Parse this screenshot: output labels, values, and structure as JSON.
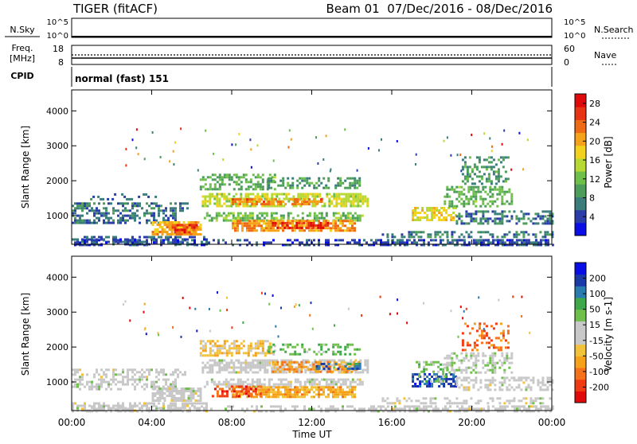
{
  "header": {
    "title": "TIGER (fitACF)",
    "beam_info": "Beam 01  07/Dec/2016 - 08/Dec/2016"
  },
  "status_panels": {
    "nsky": {
      "label": "N.Sky",
      "ticks": [
        "10^5",
        "10^0"
      ]
    },
    "nsearch": {
      "label": "N.Search",
      "ticks": [
        "10^5",
        "10^0"
      ]
    },
    "freq": {
      "label_line1": "Freq.",
      "label_line2": "[MHz]",
      "ticks": [
        "18",
        "8"
      ]
    },
    "nave": {
      "label": "Nave",
      "ticks": [
        "60",
        "0"
      ]
    },
    "cpid": {
      "label": "CPID",
      "text": "normal (fast) 151"
    }
  },
  "chart_data": [
    {
      "type": "heatmap",
      "name": "power",
      "ylabel": "Slant Range [km]",
      "yticks": [
        "4000",
        "3000",
        "2000",
        "1000"
      ],
      "ytick_values": [
        4000,
        3000,
        2000,
        1000
      ],
      "ylim": [
        180,
        4600
      ],
      "xlim_hours": [
        0,
        24
      ],
      "colorbar": {
        "label": "Power [dB]",
        "ticks": [
          "28",
          "24",
          "20",
          "16",
          "12",
          "8",
          "4"
        ],
        "tick_values": [
          28,
          24,
          20,
          16,
          12,
          8,
          4
        ],
        "range": [
          0,
          30
        ],
        "colors": [
          "#0a0ee6",
          "#2a3da8",
          "#3a7d7a",
          "#4c9c5a",
          "#6fc04a",
          "#b8d833",
          "#f2d21e",
          "#f5a21a",
          "#ef6a14",
          "#e83414",
          "#e00a0a"
        ]
      },
      "regions": [
        {
          "t0": 0.0,
          "t1": 6.7,
          "r0": 180,
          "r1": 420,
          "value": 5,
          "density": 0.55
        },
        {
          "t0": 0.0,
          "t1": 24.0,
          "r0": 180,
          "r1": 330,
          "value": 4,
          "density": 0.35
        },
        {
          "t0": 0.0,
          "t1": 5.2,
          "r0": 820,
          "r1": 1100,
          "value": 6,
          "density": 0.55
        },
        {
          "t0": 0.0,
          "t1": 5.8,
          "r0": 1150,
          "r1": 1380,
          "value": 7,
          "density": 0.45
        },
        {
          "t0": 0.8,
          "t1": 4.2,
          "r0": 1500,
          "r1": 1640,
          "value": 6,
          "density": 0.3
        },
        {
          "t0": 4.0,
          "t1": 6.4,
          "r0": 480,
          "r1": 840,
          "value": 20,
          "density": 0.8
        },
        {
          "t0": 5.0,
          "t1": 6.2,
          "r0": 550,
          "r1": 760,
          "value": 26,
          "density": 0.7
        },
        {
          "t0": 6.5,
          "t1": 14.8,
          "r0": 1250,
          "r1": 1650,
          "value": 15,
          "density": 0.7
        },
        {
          "t0": 8.0,
          "t1": 12.5,
          "r0": 1300,
          "r1": 1500,
          "value": 22,
          "density": 0.6
        },
        {
          "t0": 6.4,
          "t1": 10.2,
          "r0": 1750,
          "r1": 2200,
          "value": 11,
          "density": 0.5
        },
        {
          "t0": 9.8,
          "t1": 14.4,
          "r0": 1800,
          "r1": 2100,
          "value": 9,
          "density": 0.45
        },
        {
          "t0": 6.6,
          "t1": 14.6,
          "r0": 880,
          "r1": 1100,
          "value": 12,
          "density": 0.6
        },
        {
          "t0": 8.0,
          "t1": 14.2,
          "r0": 600,
          "r1": 880,
          "value": 21,
          "density": 0.75
        },
        {
          "t0": 10.0,
          "t1": 12.8,
          "r0": 650,
          "r1": 820,
          "value": 27,
          "density": 0.6
        },
        {
          "t0": 17.0,
          "t1": 19.2,
          "r0": 850,
          "r1": 1250,
          "value": 17,
          "density": 0.65
        },
        {
          "t0": 18.6,
          "t1": 22.0,
          "r0": 1300,
          "r1": 1850,
          "value": 11,
          "density": 0.5
        },
        {
          "t0": 19.5,
          "t1": 21.8,
          "r0": 1900,
          "r1": 2700,
          "value": 9,
          "density": 0.35
        },
        {
          "t0": 15.5,
          "t1": 24.0,
          "r0": 360,
          "r1": 560,
          "value": 7,
          "density": 0.45
        },
        {
          "t0": 19.2,
          "t1": 24.0,
          "r0": 800,
          "r1": 1150,
          "value": 7,
          "density": 0.45
        },
        {
          "t0": 14.8,
          "t1": 24.0,
          "r0": 180,
          "r1": 330,
          "value": 5,
          "density": 0.4
        }
      ]
    },
    {
      "type": "heatmap",
      "name": "velocity",
      "ylabel": "Slant Range [km]",
      "yticks": [
        "4000",
        "3000",
        "2000",
        "1000"
      ],
      "ytick_values": [
        4000,
        3000,
        2000,
        1000
      ],
      "ylim": [
        180,
        4600
      ],
      "xlim_hours": [
        0,
        24
      ],
      "colorbar": {
        "label": "Velocity [m s-1]",
        "ticks": [
          "200",
          "100",
          "50",
          "15",
          "-15",
          "-50",
          "-100",
          "-200"
        ],
        "tick_values": [
          200,
          100,
          50,
          15,
          -15,
          -50,
          -100,
          -200
        ],
        "range": [
          -250,
          250
        ],
        "colors": [
          "#e00a0a",
          "#ef3a14",
          "#f5711a",
          "#f5a21a",
          "#f2c23a",
          "#c8c8c8",
          "#c8c8c8",
          "#6fc04a",
          "#3ea84a",
          "#2a7bb0",
          "#1a3aa8",
          "#0a0ee6"
        ]
      },
      "regions": [
        {
          "t0": 0.0,
          "t1": 6.7,
          "r0": 180,
          "r1": 420,
          "value": 0,
          "density": 0.6
        },
        {
          "t0": 0.0,
          "t1": 24.0,
          "r0": 180,
          "r1": 330,
          "value": 0,
          "density": 0.35
        },
        {
          "t0": 0.0,
          "t1": 5.2,
          "r0": 820,
          "r1": 1100,
          "value": 5,
          "density": 0.5
        },
        {
          "t0": 0.0,
          "t1": 5.8,
          "r0": 1150,
          "r1": 1380,
          "value": 0,
          "density": 0.4
        },
        {
          "t0": 4.0,
          "t1": 6.4,
          "r0": 480,
          "r1": 840,
          "value": 0,
          "density": 0.75
        },
        {
          "t0": 6.5,
          "t1": 14.8,
          "r0": 1250,
          "r1": 1650,
          "value": 0,
          "density": 0.7
        },
        {
          "t0": 10.0,
          "t1": 14.4,
          "r0": 1300,
          "r1": 1600,
          "value": -120,
          "density": 0.5
        },
        {
          "t0": 12.2,
          "t1": 14.4,
          "r0": 1350,
          "r1": 1550,
          "value": 150,
          "density": 0.4
        },
        {
          "t0": 6.4,
          "t1": 10.2,
          "r0": 1750,
          "r1": 2200,
          "value": -60,
          "density": 0.5
        },
        {
          "t0": 9.8,
          "t1": 14.4,
          "r0": 1800,
          "r1": 2100,
          "value": 80,
          "density": 0.35
        },
        {
          "t0": 6.6,
          "t1": 14.6,
          "r0": 880,
          "r1": 1100,
          "value": 0,
          "density": 0.6
        },
        {
          "t0": 8.0,
          "t1": 14.2,
          "r0": 600,
          "r1": 880,
          "value": -90,
          "density": 0.75
        },
        {
          "t0": 7.0,
          "t1": 9.5,
          "r0": 600,
          "r1": 900,
          "value": -180,
          "density": 0.5
        },
        {
          "t0": 17.0,
          "t1": 19.2,
          "r0": 850,
          "r1": 1250,
          "value": 180,
          "density": 0.6
        },
        {
          "t0": 17.2,
          "t1": 18.8,
          "r0": 1000,
          "r1": 1600,
          "value": 60,
          "density": 0.4
        },
        {
          "t0": 18.6,
          "t1": 22.0,
          "r0": 1300,
          "r1": 1850,
          "value": 30,
          "density": 0.45
        },
        {
          "t0": 19.5,
          "t1": 21.8,
          "r0": 1900,
          "r1": 2700,
          "value": -150,
          "density": 0.3
        },
        {
          "t0": 15.5,
          "t1": 24.0,
          "r0": 360,
          "r1": 560,
          "value": 0,
          "density": 0.45
        },
        {
          "t0": 19.2,
          "t1": 24.0,
          "r0": 800,
          "r1": 1150,
          "value": 0,
          "density": 0.45
        },
        {
          "t0": 14.8,
          "t1": 24.0,
          "r0": 180,
          "r1": 330,
          "value": 0,
          "density": 0.4
        }
      ]
    }
  ],
  "x_axis": {
    "label": "Time UT",
    "ticks": [
      "00:00",
      "04:00",
      "08:00",
      "12:00",
      "16:00",
      "20:00",
      "00:00"
    ],
    "tick_hours": [
      0,
      4,
      8,
      12,
      16,
      20,
      24
    ]
  }
}
